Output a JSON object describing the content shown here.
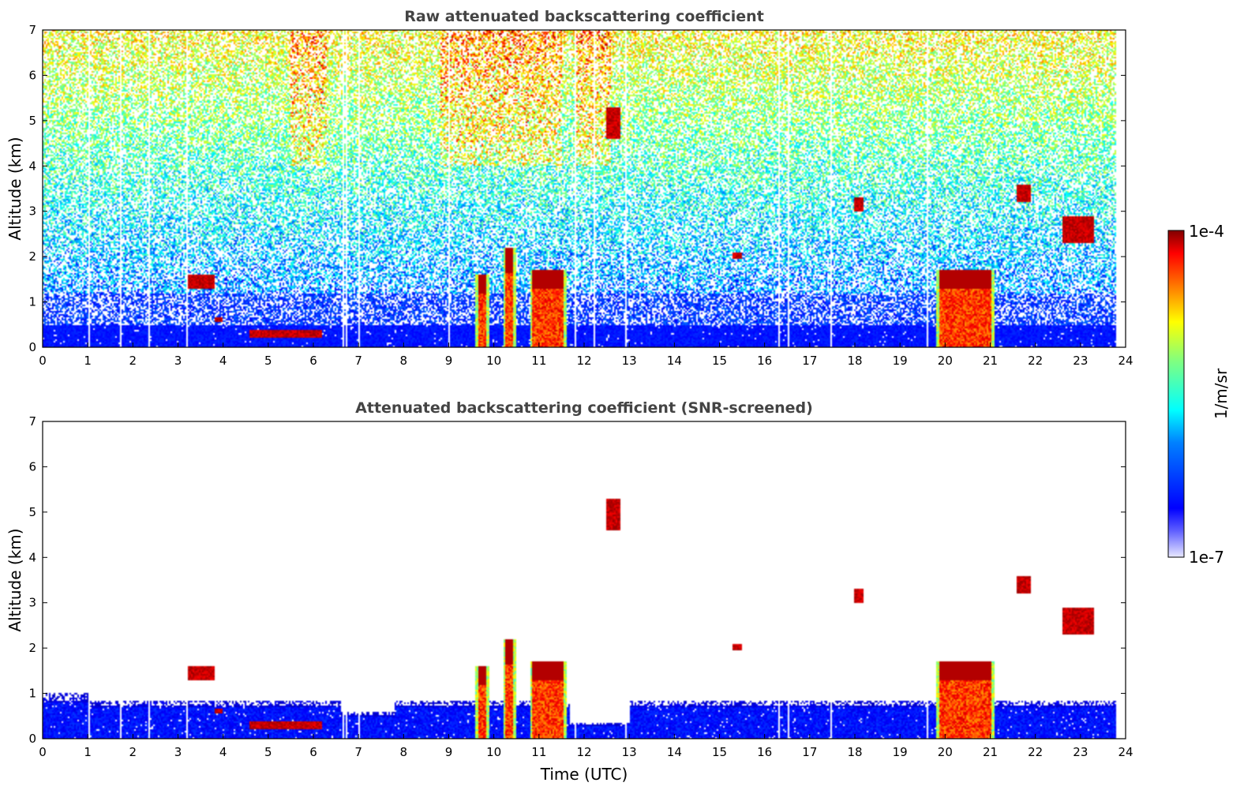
{
  "chart_data": [
    {
      "type": "heatmap",
      "title": "Raw attenuated backscattering coefficient",
      "xlabel": "",
      "ylabel": "Altitude (km)",
      "xlim": [
        0,
        24
      ],
      "ylim": [
        0,
        7
      ],
      "x_ticks": [
        "0",
        "1",
        "2",
        "3",
        "4",
        "5",
        "6",
        "7",
        "8",
        "9",
        "10",
        "11",
        "12",
        "13",
        "14",
        "15",
        "16",
        "17",
        "18",
        "19",
        "20",
        "21",
        "22",
        "23",
        "24"
      ],
      "y_ticks": [
        "0",
        "1",
        "2",
        "3",
        "4",
        "5",
        "6",
        "7"
      ],
      "screened": false,
      "features": [
        {
          "kind": "dense",
          "t0": 9.6,
          "t1": 9.9,
          "z0": 0,
          "z1": 1.6
        },
        {
          "kind": "dense",
          "t0": 10.2,
          "t1": 10.5,
          "z0": 0,
          "z1": 2.2
        },
        {
          "kind": "dense",
          "t0": 10.8,
          "t1": 11.6,
          "z0": 0,
          "z1": 1.7
        },
        {
          "kind": "dense",
          "t0": 19.8,
          "t1": 21.1,
          "z0": 0,
          "z1": 1.7
        },
        {
          "kind": "layer",
          "t0": 4.6,
          "t1": 6.2,
          "z0": 0.2,
          "z1": 0.4
        },
        {
          "kind": "blob",
          "t0": 3.2,
          "t1": 3.8,
          "z0": 1.3,
          "z1": 1.6
        },
        {
          "kind": "blob",
          "t0": 3.8,
          "t1": 4.0,
          "z0": 0.55,
          "z1": 0.65
        },
        {
          "kind": "blob",
          "t0": 12.5,
          "t1": 12.8,
          "z0": 4.6,
          "z1": 5.3
        },
        {
          "kind": "blob",
          "t0": 15.3,
          "t1": 15.5,
          "z0": 1.95,
          "z1": 2.1
        },
        {
          "kind": "blob",
          "t0": 18.0,
          "t1": 18.2,
          "z0": 3.0,
          "z1": 3.3
        },
        {
          "kind": "blob",
          "t0": 22.6,
          "t1": 23.3,
          "z0": 2.3,
          "z1": 2.9
        },
        {
          "kind": "blob",
          "t0": 21.6,
          "t1": 21.9,
          "z0": 3.2,
          "z1": 3.6
        }
      ]
    },
    {
      "type": "heatmap",
      "title": "Attenuated backscattering coefficient (SNR-screened)",
      "xlabel": "Time (UTC)",
      "ylabel": "Altitude (km)",
      "xlim": [
        0,
        24
      ],
      "ylim": [
        0,
        7
      ],
      "x_ticks": [
        "0",
        "1",
        "2",
        "3",
        "4",
        "5",
        "6",
        "7",
        "8",
        "9",
        "10",
        "11",
        "12",
        "13",
        "14",
        "15",
        "16",
        "17",
        "18",
        "19",
        "20",
        "21",
        "22",
        "23",
        "24"
      ],
      "y_ticks": [
        "0",
        "1",
        "2",
        "3",
        "4",
        "5",
        "6",
        "7"
      ],
      "screened": true,
      "features": [
        {
          "kind": "dense",
          "t0": 9.6,
          "t1": 9.9,
          "z0": 0,
          "z1": 1.6
        },
        {
          "kind": "dense",
          "t0": 10.2,
          "t1": 10.5,
          "z0": 0,
          "z1": 2.2
        },
        {
          "kind": "dense",
          "t0": 10.8,
          "t1": 11.6,
          "z0": 0,
          "z1": 1.7
        },
        {
          "kind": "dense",
          "t0": 19.8,
          "t1": 21.1,
          "z0": 0,
          "z1": 1.7
        },
        {
          "kind": "layer",
          "t0": 4.6,
          "t1": 6.2,
          "z0": 0.2,
          "z1": 0.4
        },
        {
          "kind": "blob",
          "t0": 3.2,
          "t1": 3.8,
          "z0": 1.3,
          "z1": 1.6
        },
        {
          "kind": "blob",
          "t0": 3.8,
          "t1": 4.0,
          "z0": 0.55,
          "z1": 0.65
        },
        {
          "kind": "blob",
          "t0": 12.5,
          "t1": 12.8,
          "z0": 4.6,
          "z1": 5.3
        },
        {
          "kind": "blob",
          "t0": 15.3,
          "t1": 15.5,
          "z0": 1.95,
          "z1": 2.1
        },
        {
          "kind": "blob",
          "t0": 18.0,
          "t1": 18.2,
          "z0": 3.0,
          "z1": 3.3
        },
        {
          "kind": "blob",
          "t0": 22.6,
          "t1": 23.3,
          "z0": 2.3,
          "z1": 2.9
        },
        {
          "kind": "blob",
          "t0": 21.6,
          "t1": 21.9,
          "z0": 3.2,
          "z1": 3.6
        }
      ]
    }
  ],
  "colorbar": {
    "max_label": "1e-4",
    "min_label": "1e-7",
    "unit_label": "1/m/sr",
    "colormap": "jet",
    "colors": [
      "#e8e8ff",
      "#0000ff",
      "#00ffff",
      "#ffff00",
      "#ff0000",
      "#800000"
    ]
  }
}
